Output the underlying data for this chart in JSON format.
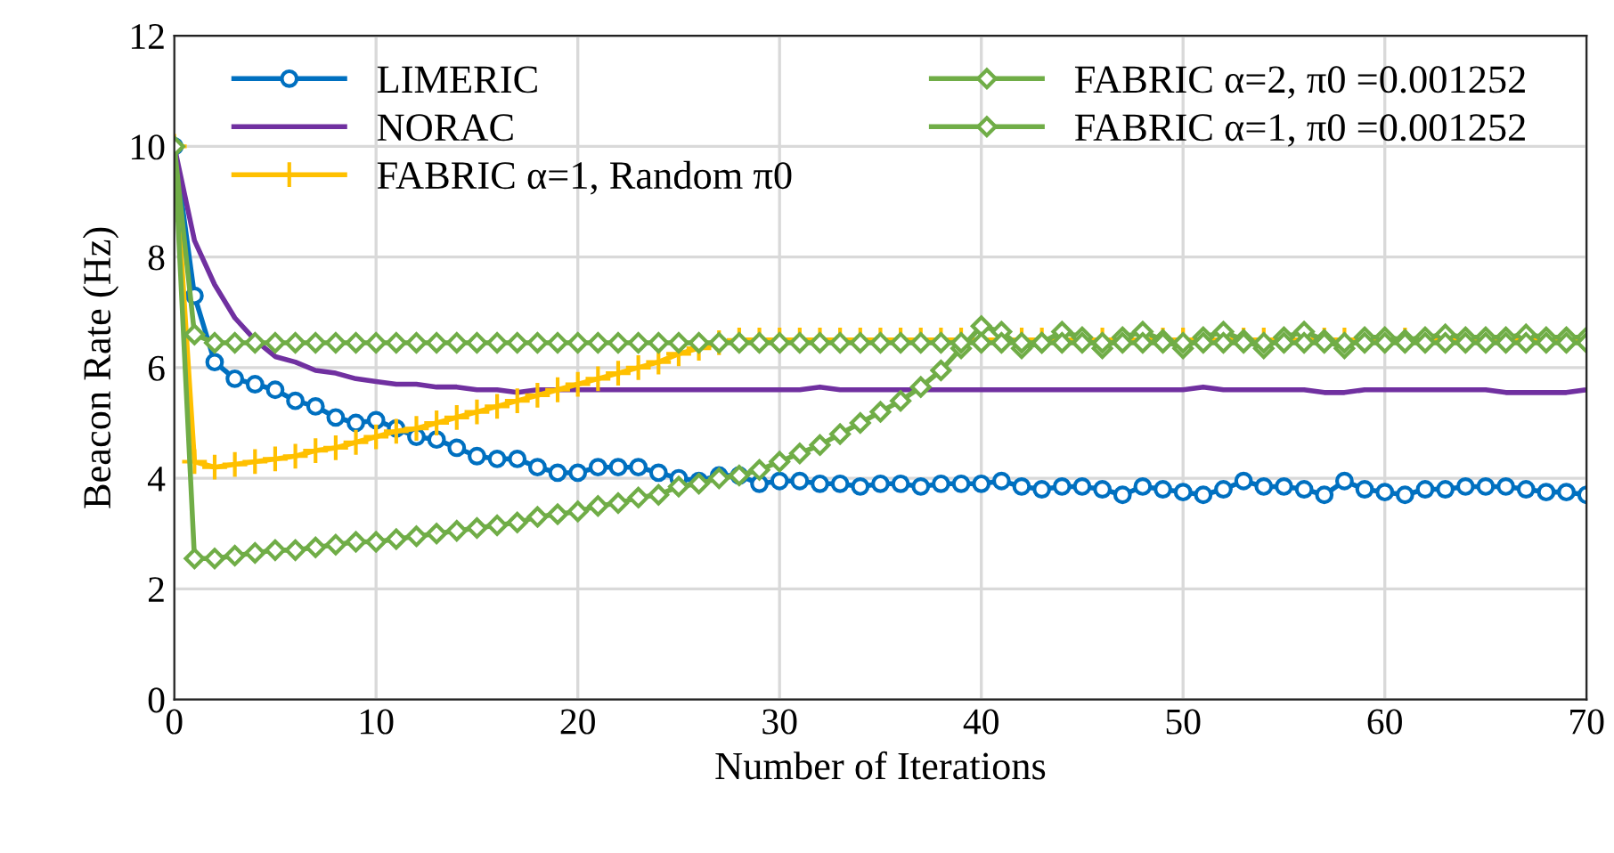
{
  "chart_data": {
    "type": "line",
    "xlabel": "Number of Iterations",
    "ylabel": "Beacon Rate (Hz)",
    "x": [
      0,
      1,
      2,
      3,
      4,
      5,
      6,
      7,
      8,
      9,
      10,
      11,
      12,
      13,
      14,
      15,
      16,
      17,
      18,
      19,
      20,
      21,
      22,
      23,
      24,
      25,
      26,
      27,
      28,
      29,
      30,
      31,
      32,
      33,
      34,
      35,
      36,
      37,
      38,
      39,
      40,
      41,
      42,
      43,
      44,
      45,
      46,
      47,
      48,
      49,
      50,
      51,
      52,
      53,
      54,
      55,
      56,
      57,
      58,
      59,
      60,
      61,
      62,
      63,
      64,
      65,
      66,
      67,
      68,
      69,
      70
    ],
    "xlim": [
      0,
      70
    ],
    "xticks": [
      0,
      10,
      20,
      30,
      40,
      50,
      60,
      70
    ],
    "ylim": [
      0,
      12
    ],
    "yticks": [
      0,
      2,
      4,
      6,
      8,
      10,
      12
    ],
    "grid": true,
    "legend": "top",
    "series": [
      {
        "name": "LIMERIC",
        "color": "#0070c0",
        "marker": "circle",
        "values": [
          10,
          7.3,
          6.1,
          5.8,
          5.7,
          5.6,
          5.4,
          5.3,
          5.1,
          5.0,
          5.05,
          4.9,
          4.75,
          4.7,
          4.55,
          4.4,
          4.35,
          4.35,
          4.2,
          4.1,
          4.1,
          4.2,
          4.2,
          4.2,
          4.1,
          4.0,
          3.95,
          4.05,
          4.05,
          3.9,
          3.95,
          3.95,
          3.9,
          3.9,
          3.85,
          3.9,
          3.9,
          3.85,
          3.9,
          3.9,
          3.9,
          3.95,
          3.85,
          3.8,
          3.85,
          3.85,
          3.8,
          3.7,
          3.85,
          3.8,
          3.75,
          3.7,
          3.8,
          3.95,
          3.85,
          3.85,
          3.8,
          3.7,
          3.95,
          3.8,
          3.75,
          3.7,
          3.8,
          3.8,
          3.85,
          3.85,
          3.85,
          3.8,
          3.75,
          3.75,
          3.7
        ]
      },
      {
        "name": "NORAC",
        "color": "#7030a0",
        "marker": "none",
        "values": [
          10,
          8.3,
          7.5,
          6.9,
          6.5,
          6.2,
          6.1,
          5.95,
          5.9,
          5.8,
          5.75,
          5.7,
          5.7,
          5.65,
          5.65,
          5.6,
          5.6,
          5.55,
          5.6,
          5.6,
          5.6,
          5.6,
          5.6,
          5.6,
          5.6,
          5.6,
          5.6,
          5.6,
          5.6,
          5.6,
          5.6,
          5.6,
          5.65,
          5.6,
          5.6,
          5.6,
          5.6,
          5.6,
          5.6,
          5.6,
          5.6,
          5.6,
          5.6,
          5.6,
          5.6,
          5.6,
          5.6,
          5.6,
          5.6,
          5.6,
          5.6,
          5.65,
          5.6,
          5.6,
          5.6,
          5.6,
          5.6,
          5.55,
          5.55,
          5.6,
          5.6,
          5.6,
          5.6,
          5.6,
          5.6,
          5.6,
          5.55,
          5.55,
          5.55,
          5.55,
          5.6
        ]
      },
      {
        "name": "FABRIC α=1, Random π0",
        "color": "#ffc000",
        "marker": "cross",
        "values": [
          10,
          4.3,
          4.2,
          4.25,
          4.3,
          4.35,
          4.4,
          4.5,
          4.55,
          4.65,
          4.75,
          4.85,
          4.9,
          5.0,
          5.1,
          5.2,
          5.3,
          5.4,
          5.5,
          5.6,
          5.7,
          5.8,
          5.9,
          6.0,
          6.1,
          6.25,
          6.35,
          6.45,
          6.5,
          6.5,
          6.5,
          6.5,
          6.5,
          6.5,
          6.5,
          6.5,
          6.5,
          6.5,
          6.5,
          6.5,
          6.5,
          6.5,
          6.5,
          6.5,
          6.5,
          6.5,
          6.5,
          6.5,
          6.5,
          6.5,
          6.5,
          6.5,
          6.5,
          6.5,
          6.5,
          6.5,
          6.5,
          6.5,
          6.5,
          6.5,
          6.5,
          6.5,
          6.5,
          6.5,
          6.5,
          6.5,
          6.5,
          6.5,
          6.5,
          6.5,
          6.5
        ]
      },
      {
        "name": "FABRIC α=2, π0 =0.001252",
        "color": "#70ad47",
        "marker": "diamond",
        "values": [
          10,
          2.55,
          2.55,
          2.6,
          2.65,
          2.7,
          2.7,
          2.75,
          2.8,
          2.85,
          2.85,
          2.9,
          2.95,
          3.0,
          3.05,
          3.1,
          3.15,
          3.2,
          3.3,
          3.35,
          3.4,
          3.5,
          3.55,
          3.65,
          3.7,
          3.85,
          3.9,
          4.0,
          4.05,
          4.15,
          4.3,
          4.45,
          4.6,
          4.8,
          5.0,
          5.2,
          5.4,
          5.65,
          5.95,
          6.35,
          6.75,
          6.65,
          6.35,
          6.45,
          6.65,
          6.55,
          6.35,
          6.55,
          6.65,
          6.5,
          6.35,
          6.55,
          6.65,
          6.5,
          6.35,
          6.55,
          6.65,
          6.5,
          6.35,
          6.55,
          6.55,
          6.5,
          6.55,
          6.6,
          6.55,
          6.55,
          6.55,
          6.6,
          6.55,
          6.55,
          6.55
        ]
      },
      {
        "name": "FABRIC α=1, π0 =0.001252",
        "color": "#70ad47",
        "marker": "diamond",
        "values": [
          10,
          6.6,
          6.45,
          6.45,
          6.45,
          6.45,
          6.45,
          6.45,
          6.45,
          6.45,
          6.45,
          6.45,
          6.45,
          6.45,
          6.45,
          6.45,
          6.45,
          6.45,
          6.45,
          6.45,
          6.45,
          6.45,
          6.45,
          6.45,
          6.45,
          6.45,
          6.45,
          6.45,
          6.45,
          6.45,
          6.45,
          6.45,
          6.45,
          6.45,
          6.45,
          6.45,
          6.45,
          6.45,
          6.45,
          6.45,
          6.45,
          6.45,
          6.45,
          6.45,
          6.45,
          6.45,
          6.45,
          6.45,
          6.45,
          6.45,
          6.45,
          6.45,
          6.45,
          6.45,
          6.45,
          6.45,
          6.45,
          6.45,
          6.45,
          6.45,
          6.45,
          6.45,
          6.45,
          6.45,
          6.45,
          6.45,
          6.45,
          6.45,
          6.45,
          6.45,
          6.45
        ]
      }
    ]
  }
}
